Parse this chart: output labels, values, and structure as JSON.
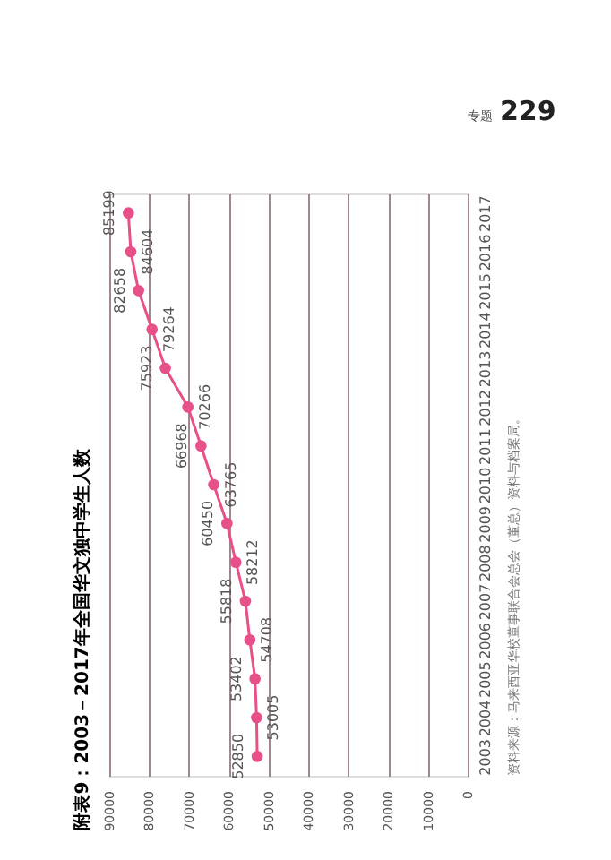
{
  "chart_data": {
    "type": "line",
    "title": "附表9：2003－2017年全国华文独中学生人数",
    "categories": [
      "2017",
      "2016",
      "2015",
      "2014",
      "2013",
      "2012",
      "2011",
      "2010",
      "2009",
      "2008",
      "2007",
      "2006",
      "2005",
      "2004",
      "2003"
    ],
    "values": [
      85199,
      84604,
      82658,
      79264,
      75923,
      70266,
      66968,
      63765,
      60450,
      58212,
      55818,
      54708,
      53402,
      53005,
      52850
    ],
    "color": "#e8508a",
    "orientation": "horizontal",
    "xlim": [
      90000,
      0
    ],
    "xticks": [
      90000,
      80000,
      70000,
      60000,
      50000,
      40000,
      30000,
      20000,
      10000,
      0
    ],
    "grid": "x",
    "marker": "circle",
    "line_style": "solid",
    "data_labels": true,
    "annotations": [
      "资料来源：马来西亚华校董事联合会总会（董总）资料与档案局。",
      "专题",
      "229"
    ]
  }
}
